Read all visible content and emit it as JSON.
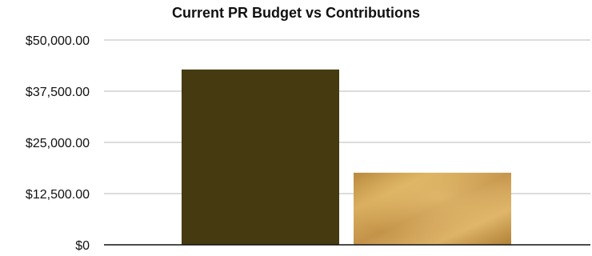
{
  "chart_data": {
    "type": "bar",
    "title": "Current PR Budget vs Contributions",
    "categories": [
      "",
      ""
    ],
    "values": [
      42800,
      17600
    ],
    "y_ticks": [
      "$0",
      "$12,500.00",
      "$25,000.00",
      "$37,500.00",
      "$50,000.00"
    ],
    "ylim": [
      0,
      50000
    ],
    "grid": true,
    "colors": [
      "#453a10",
      "#c89a4a"
    ],
    "legend": "none"
  }
}
